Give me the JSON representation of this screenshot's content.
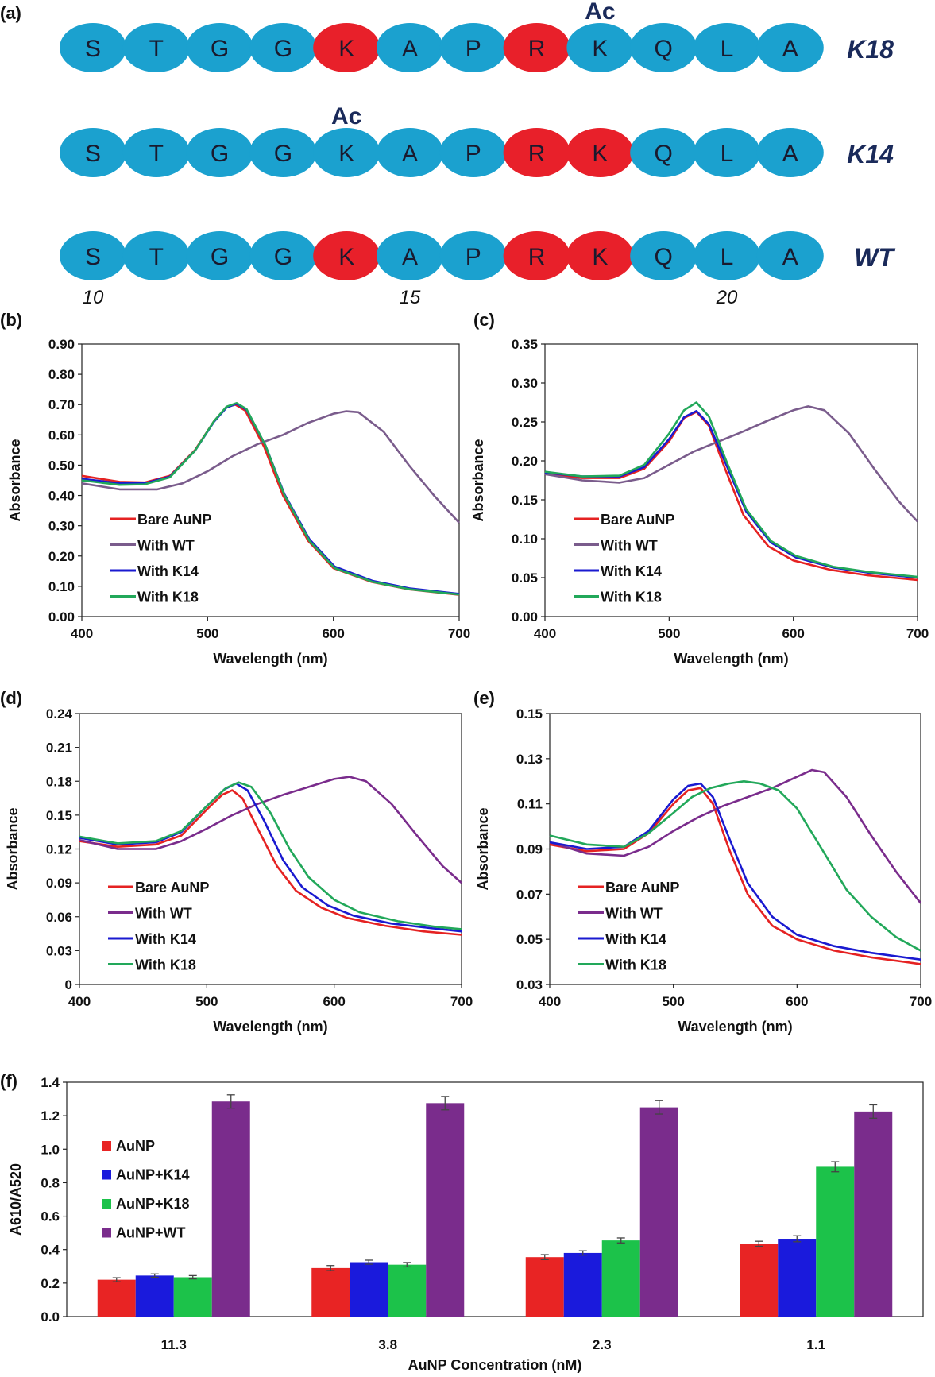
{
  "panel_labels": [
    "(a)",
    "(b)",
    "(c)",
    "(d)",
    "(e)",
    "(f)"
  ],
  "colors": {
    "residue_normal": "#1ba1cf",
    "residue_charged": "#e8202a",
    "bare": "#e52222",
    "wt": "#7a5c8c",
    "wt_dark": "#7a2c8c",
    "k14": "#1a1ad0",
    "k18": "#22a85a",
    "bar_aunp": "#e82424",
    "bar_k14": "#1a1adc",
    "bar_k18": "#1cc24a",
    "bar_wt": "#7a2c8c"
  },
  "sequences": [
    {
      "name": "K18",
      "residues": [
        "S",
        "T",
        "G",
        "G",
        "K",
        "A",
        "P",
        "R",
        "K",
        "Q",
        "L",
        "A"
      ],
      "charged": [
        4,
        7
      ],
      "ac_label": "Ac",
      "ac_index": 8
    },
    {
      "name": "K14",
      "residues": [
        "S",
        "T",
        "G",
        "G",
        "K",
        "A",
        "P",
        "R",
        "K",
        "Q",
        "L",
        "A"
      ],
      "charged": [
        7,
        8
      ],
      "ac_label": "Ac",
      "ac_index": 4
    },
    {
      "name": "WT",
      "residues": [
        "S",
        "T",
        "G",
        "G",
        "K",
        "A",
        "P",
        "R",
        "K",
        "Q",
        "L",
        "A"
      ],
      "charged": [
        4,
        7,
        8
      ],
      "ac_label": "",
      "ac_index": -1
    }
  ],
  "positions": [
    {
      "label": "10",
      "index": 0
    },
    {
      "label": "15",
      "index": 5
    },
    {
      "label": "20",
      "index": 10
    }
  ],
  "chart_data": [
    {
      "panel": "(b)",
      "type": "line",
      "xlabel": "Wavelength (nm)",
      "ylabel": "Absorbance",
      "xlim": [
        400,
        700
      ],
      "xticks": [
        "400",
        "500",
        "600",
        "700"
      ],
      "ylim": [
        0,
        0.9
      ],
      "yticks": [
        "0.00",
        "0.10",
        "0.20",
        "0.30",
        "0.40",
        "0.50",
        "0.60",
        "0.70",
        "0.80",
        "0.90"
      ],
      "legend_position": "lower-left",
      "series": [
        {
          "name": "Bare AuNP",
          "color": "#e52222",
          "x": [
            400,
            430,
            450,
            470,
            490,
            505,
            515,
            522,
            530,
            545,
            560,
            580,
            600,
            630,
            660,
            700
          ],
          "y": [
            0.465,
            0.445,
            0.443,
            0.465,
            0.55,
            0.645,
            0.692,
            0.7,
            0.68,
            0.56,
            0.4,
            0.25,
            0.16,
            0.115,
            0.09,
            0.072
          ]
        },
        {
          "name": "With WT",
          "color": "#7a5c8c",
          "x": [
            400,
            430,
            460,
            480,
            500,
            520,
            540,
            560,
            580,
            600,
            610,
            620,
            640,
            660,
            680,
            700
          ],
          "y": [
            0.44,
            0.42,
            0.42,
            0.44,
            0.48,
            0.53,
            0.57,
            0.6,
            0.64,
            0.67,
            0.678,
            0.675,
            0.61,
            0.5,
            0.4,
            0.31
          ]
        },
        {
          "name": "With K14",
          "color": "#1a1ad0",
          "x": [
            400,
            430,
            450,
            470,
            490,
            505,
            515,
            523,
            531,
            546,
            561,
            581,
            601,
            631,
            661,
            700
          ],
          "y": [
            0.455,
            0.44,
            0.44,
            0.462,
            0.548,
            0.643,
            0.69,
            0.703,
            0.683,
            0.565,
            0.405,
            0.255,
            0.165,
            0.118,
            0.093,
            0.075
          ]
        },
        {
          "name": "With K18",
          "color": "#22a85a",
          "x": [
            400,
            430,
            450,
            470,
            490,
            505,
            515,
            523,
            531,
            546,
            561,
            581,
            601,
            631,
            661,
            700
          ],
          "y": [
            0.45,
            0.435,
            0.437,
            0.46,
            0.548,
            0.645,
            0.693,
            0.705,
            0.685,
            0.565,
            0.402,
            0.25,
            0.16,
            0.115,
            0.09,
            0.073
          ]
        }
      ]
    },
    {
      "panel": "(c)",
      "type": "line",
      "xlabel": "Wavelength (nm)",
      "ylabel": "Absorbance",
      "xlim": [
        400,
        700
      ],
      "xticks": [
        "400",
        "500",
        "600",
        "700"
      ],
      "ylim": [
        0,
        0.35
      ],
      "yticks": [
        "0.00",
        "0.05",
        "0.10",
        "0.15",
        "0.20",
        "0.25",
        "0.30",
        "0.35"
      ],
      "legend_position": "lower-left",
      "series": [
        {
          "name": "Bare AuNP",
          "color": "#e52222",
          "x": [
            400,
            430,
            460,
            480,
            500,
            512,
            522,
            532,
            545,
            560,
            580,
            600,
            630,
            660,
            700
          ],
          "y": [
            0.183,
            0.178,
            0.178,
            0.19,
            0.225,
            0.255,
            0.263,
            0.245,
            0.19,
            0.13,
            0.09,
            0.072,
            0.06,
            0.053,
            0.047
          ]
        },
        {
          "name": "With WT",
          "color": "#7a5c8c",
          "x": [
            400,
            430,
            460,
            480,
            500,
            520,
            540,
            560,
            580,
            600,
            612,
            625,
            645,
            665,
            685,
            700
          ],
          "y": [
            0.183,
            0.175,
            0.172,
            0.178,
            0.195,
            0.212,
            0.225,
            0.238,
            0.252,
            0.265,
            0.27,
            0.265,
            0.235,
            0.19,
            0.148,
            0.122
          ]
        },
        {
          "name": "With K14",
          "color": "#1a1ad0",
          "x": [
            400,
            430,
            460,
            480,
            500,
            512,
            522,
            532,
            546,
            562,
            582,
            602,
            632,
            662,
            700
          ],
          "y": [
            0.185,
            0.18,
            0.18,
            0.192,
            0.228,
            0.256,
            0.264,
            0.247,
            0.195,
            0.135,
            0.095,
            0.076,
            0.063,
            0.056,
            0.05
          ]
        },
        {
          "name": "With K18",
          "color": "#22a85a",
          "x": [
            400,
            430,
            460,
            480,
            500,
            512,
            522,
            532,
            546,
            562,
            582,
            602,
            632,
            662,
            700
          ],
          "y": [
            0.186,
            0.18,
            0.181,
            0.195,
            0.235,
            0.265,
            0.275,
            0.257,
            0.2,
            0.138,
            0.097,
            0.078,
            0.064,
            0.057,
            0.051
          ]
        }
      ]
    },
    {
      "panel": "(d)",
      "type": "line",
      "xlabel": "Wavelength (nm)",
      "ylabel": "Absorbance",
      "xlim": [
        400,
        700
      ],
      "xticks": [
        "400",
        "500",
        "600",
        "700"
      ],
      "ylim": [
        0,
        0.24
      ],
      "yticks": [
        "0",
        "0.03",
        "0.06",
        "0.09",
        "0.12",
        "0.15",
        "0.18",
        "0.21",
        "0.24"
      ],
      "legend_position": "lower-left",
      "series": [
        {
          "name": "Bare AuNP",
          "color": "#e52222",
          "x": [
            400,
            430,
            460,
            480,
            500,
            512,
            520,
            528,
            540,
            555,
            570,
            590,
            610,
            640,
            670,
            700
          ],
          "y": [
            0.127,
            0.122,
            0.124,
            0.132,
            0.155,
            0.168,
            0.172,
            0.165,
            0.138,
            0.105,
            0.083,
            0.068,
            0.059,
            0.052,
            0.047,
            0.044
          ]
        },
        {
          "name": "With WT",
          "color": "#7a2c8c",
          "x": [
            400,
            430,
            460,
            480,
            500,
            520,
            540,
            560,
            580,
            600,
            612,
            625,
            645,
            665,
            685,
            700
          ],
          "y": [
            0.128,
            0.12,
            0.12,
            0.127,
            0.138,
            0.15,
            0.16,
            0.168,
            0.175,
            0.182,
            0.184,
            0.18,
            0.16,
            0.132,
            0.105,
            0.09
          ]
        },
        {
          "name": "With K14",
          "color": "#1a1ad0",
          "x": [
            400,
            430,
            460,
            480,
            500,
            514,
            523,
            532,
            545,
            560,
            575,
            595,
            615,
            645,
            675,
            700
          ],
          "y": [
            0.13,
            0.124,
            0.126,
            0.135,
            0.158,
            0.173,
            0.178,
            0.172,
            0.145,
            0.11,
            0.086,
            0.07,
            0.061,
            0.054,
            0.05,
            0.047
          ]
        },
        {
          "name": "With K18",
          "color": "#22a85a",
          "x": [
            400,
            430,
            460,
            480,
            500,
            515,
            525,
            535,
            550,
            565,
            580,
            600,
            620,
            650,
            680,
            700
          ],
          "y": [
            0.131,
            0.125,
            0.127,
            0.136,
            0.158,
            0.174,
            0.179,
            0.175,
            0.152,
            0.12,
            0.095,
            0.075,
            0.064,
            0.056,
            0.051,
            0.049
          ]
        }
      ]
    },
    {
      "panel": "(e)",
      "type": "line",
      "xlabel": "Wavelength (nm)",
      "ylabel": "Absorbance",
      "xlim": [
        400,
        700
      ],
      "xticks": [
        "400",
        "500",
        "600",
        "700"
      ],
      "ylim": [
        0.03,
        0.15
      ],
      "yticks": [
        "0.03",
        "0.05",
        "0.07",
        "0.09",
        "0.11",
        "0.13",
        "0.15"
      ],
      "legend_position": "lower-left",
      "series": [
        {
          "name": "Bare AuNP",
          "color": "#e52222",
          "x": [
            400,
            430,
            460,
            480,
            500,
            512,
            522,
            532,
            545,
            560,
            580,
            600,
            630,
            660,
            700
          ],
          "y": [
            0.092,
            0.089,
            0.09,
            0.097,
            0.11,
            0.116,
            0.117,
            0.11,
            0.09,
            0.07,
            0.056,
            0.05,
            0.045,
            0.042,
            0.039
          ]
        },
        {
          "name": "With WT",
          "color": "#7a2c8c",
          "x": [
            400,
            430,
            460,
            480,
            500,
            520,
            540,
            560,
            580,
            600,
            612,
            622,
            640,
            660,
            680,
            700
          ],
          "y": [
            0.093,
            0.088,
            0.087,
            0.091,
            0.098,
            0.104,
            0.109,
            0.113,
            0.117,
            0.122,
            0.125,
            0.124,
            0.113,
            0.096,
            0.08,
            0.066
          ]
        },
        {
          "name": "With K14",
          "color": "#1a1ad0",
          "x": [
            400,
            430,
            460,
            480,
            500,
            512,
            522,
            532,
            545,
            560,
            580,
            600,
            630,
            660,
            700
          ],
          "y": [
            0.093,
            0.09,
            0.091,
            0.098,
            0.112,
            0.118,
            0.119,
            0.113,
            0.095,
            0.075,
            0.06,
            0.052,
            0.047,
            0.044,
            0.041
          ]
        },
        {
          "name": "With K18",
          "color": "#22a85a",
          "x": [
            400,
            430,
            460,
            480,
            500,
            515,
            530,
            545,
            557,
            570,
            585,
            600,
            620,
            640,
            660,
            680,
            700
          ],
          "y": [
            0.096,
            0.092,
            0.091,
            0.097,
            0.106,
            0.113,
            0.117,
            0.119,
            0.12,
            0.119,
            0.116,
            0.108,
            0.09,
            0.072,
            0.06,
            0.051,
            0.045
          ]
        }
      ]
    },
    {
      "panel": "(f)",
      "type": "bar",
      "xlabel": "AuNP Concentration (nM)",
      "ylabel": "A610/A520",
      "categories": [
        "11.3",
        "3.8",
        "2.3",
        "1.1"
      ],
      "ylim": [
        0,
        1.4
      ],
      "yticks": [
        "0.0",
        "0.2",
        "0.4",
        "0.6",
        "0.8",
        "1.0",
        "1.2",
        "1.4"
      ],
      "legend_position": "left",
      "series": [
        {
          "name": "AuNP",
          "color": "#e82424",
          "values": [
            0.22,
            0.29,
            0.355,
            0.435
          ],
          "errors": [
            0.012,
            0.015,
            0.015,
            0.015
          ]
        },
        {
          "name": "AuNP+K14",
          "color": "#1a1adc",
          "values": [
            0.245,
            0.325,
            0.38,
            0.465
          ],
          "errors": [
            0.01,
            0.012,
            0.013,
            0.018
          ]
        },
        {
          "name": "AuNP+K18",
          "color": "#1cc24a",
          "values": [
            0.235,
            0.31,
            0.455,
            0.895
          ],
          "errors": [
            0.01,
            0.013,
            0.015,
            0.03
          ]
        },
        {
          "name": "AuNP+WT",
          "color": "#7a2c8c",
          "values": [
            1.285,
            1.275,
            1.25,
            1.225
          ],
          "errors": [
            0.04,
            0.04,
            0.04,
            0.04
          ]
        }
      ]
    }
  ]
}
